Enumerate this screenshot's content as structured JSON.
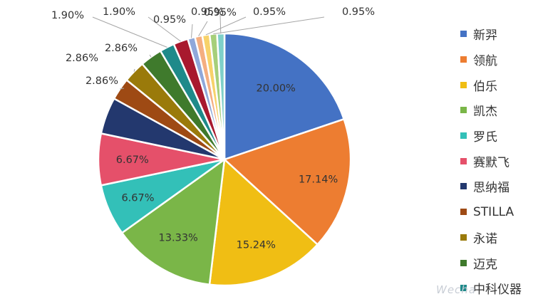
{
  "chart_data": {
    "type": "pie",
    "categories": [
      "新羿",
      "领航",
      "伯乐",
      "凯杰",
      "罗氏",
      "赛默飞",
      "思纳福",
      "STILLA",
      "永诺",
      "迈克",
      "中科仪器",
      "",
      "",
      "",
      "",
      "",
      ""
    ],
    "values": [
      20.0,
      17.14,
      15.24,
      13.33,
      6.67,
      6.67,
      4.76,
      2.86,
      2.86,
      2.86,
      1.9,
      1.9,
      0.95,
      0.95,
      0.95,
      0.95,
      0.95
    ],
    "data_labels": [
      "20.00%",
      "17.14%",
      "15.24%",
      "13.33%",
      "6.67%",
      "6.67%",
      "",
      "2.86%",
      "2.86%",
      "2.86%",
      "1.90%",
      "1.90%",
      "0.95%",
      "0.95%",
      "0.95%",
      "0.95%",
      "0.95%"
    ],
    "colors": [
      "#4472C4",
      "#ED7D31",
      "#F0BE14",
      "#7AB648",
      "#33C0B8",
      "#E5506A",
      "#23386E",
      "#9E4A14",
      "#9A7A0A",
      "#3F7A2C",
      "#1E8A8A",
      "#A8192E",
      "#8FA8DA",
      "#F4AE80",
      "#F7D26A",
      "#A6CF7A",
      "#7FD0C9"
    ],
    "legend_position": "right"
  },
  "legend": [
    "新羿",
    "领航",
    "伯乐",
    "凯杰",
    "罗氏",
    "赛默飞",
    "思纳福",
    "STILLA",
    "永诺",
    "迈克",
    "中科仪器"
  ],
  "watermark": "Wecha"
}
